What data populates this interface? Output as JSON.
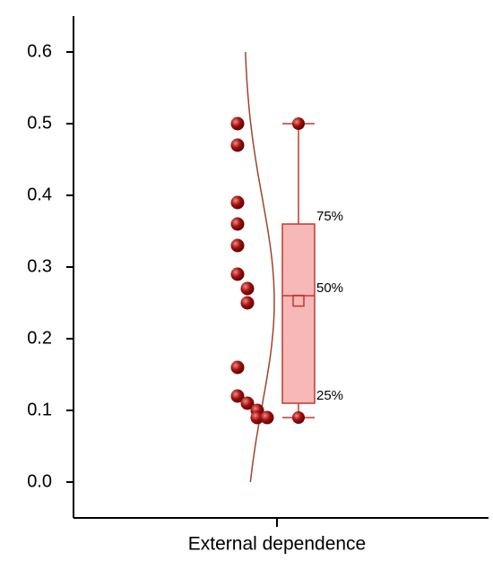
{
  "chart_data": {
    "type": "box",
    "x_label": "External dependence",
    "ylim": [
      -0.05,
      0.65
    ],
    "yticks": [
      {
        "value": 0,
        "label": "0.0"
      },
      0.1,
      0.2,
      0.3,
      0.4,
      0.5,
      0.6
    ],
    "points": [
      0.5,
      0.47,
      0.39,
      0.36,
      0.33,
      0.29,
      0.27,
      0.25,
      0.16,
      0.12,
      0.11,
      0.1,
      0.09,
      0.09
    ],
    "box": {
      "min": 0.09,
      "q1": 0.11,
      "median": 0.26,
      "q3": 0.36,
      "max": 0.5,
      "mean": 0.253
    },
    "box_labels": {
      "q1": "25%",
      "median": "50%",
      "q3": "75%"
    },
    "curve_range": [
      0,
      0.6
    ],
    "point_color": "#a01010",
    "box_color": "#f7b8b8",
    "box_stroke": "#c0392b",
    "curve_color": "#a0442a"
  }
}
